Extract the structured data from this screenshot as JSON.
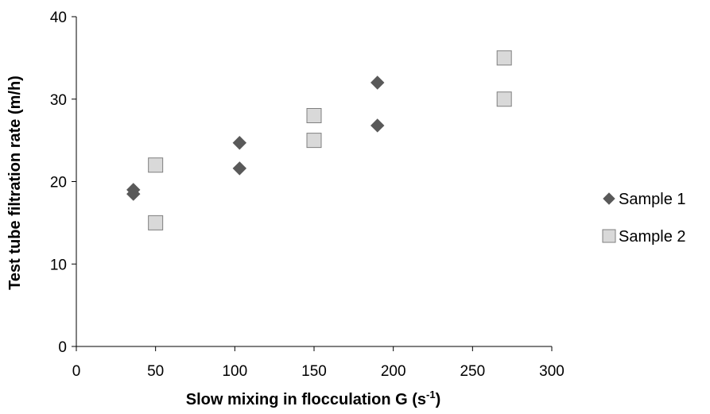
{
  "chart_data": {
    "type": "scatter",
    "title": "",
    "xlabel": "Slow mixing in flocculation G (s",
    "xlabel_sup": "-1",
    "xlabel_end": ")",
    "ylabel": "Test tube filtration rate (m/h)",
    "xlim": [
      0,
      300
    ],
    "ylim": [
      0,
      40
    ],
    "xticks": [
      0,
      50,
      100,
      150,
      200,
      250,
      300
    ],
    "yticks": [
      0,
      10,
      20,
      30,
      40
    ],
    "grid": false,
    "legend_position": "right",
    "series": [
      {
        "name": "Sample 1",
        "marker": "diamond",
        "color": "#595959",
        "points": [
          [
            36,
            19.0
          ],
          [
            36,
            18.5
          ],
          [
            103,
            24.7
          ],
          [
            103,
            21.6
          ],
          [
            190,
            32.0
          ],
          [
            190,
            26.8
          ]
        ]
      },
      {
        "name": "Sample 2",
        "marker": "square",
        "color": "#d9d9d9",
        "stroke": "#7f7f7f",
        "points": [
          [
            50,
            22.0
          ],
          [
            50,
            15.0
          ],
          [
            150,
            28.0
          ],
          [
            150,
            25.0
          ],
          [
            270,
            35.0
          ],
          [
            270,
            30.0
          ]
        ]
      }
    ]
  }
}
